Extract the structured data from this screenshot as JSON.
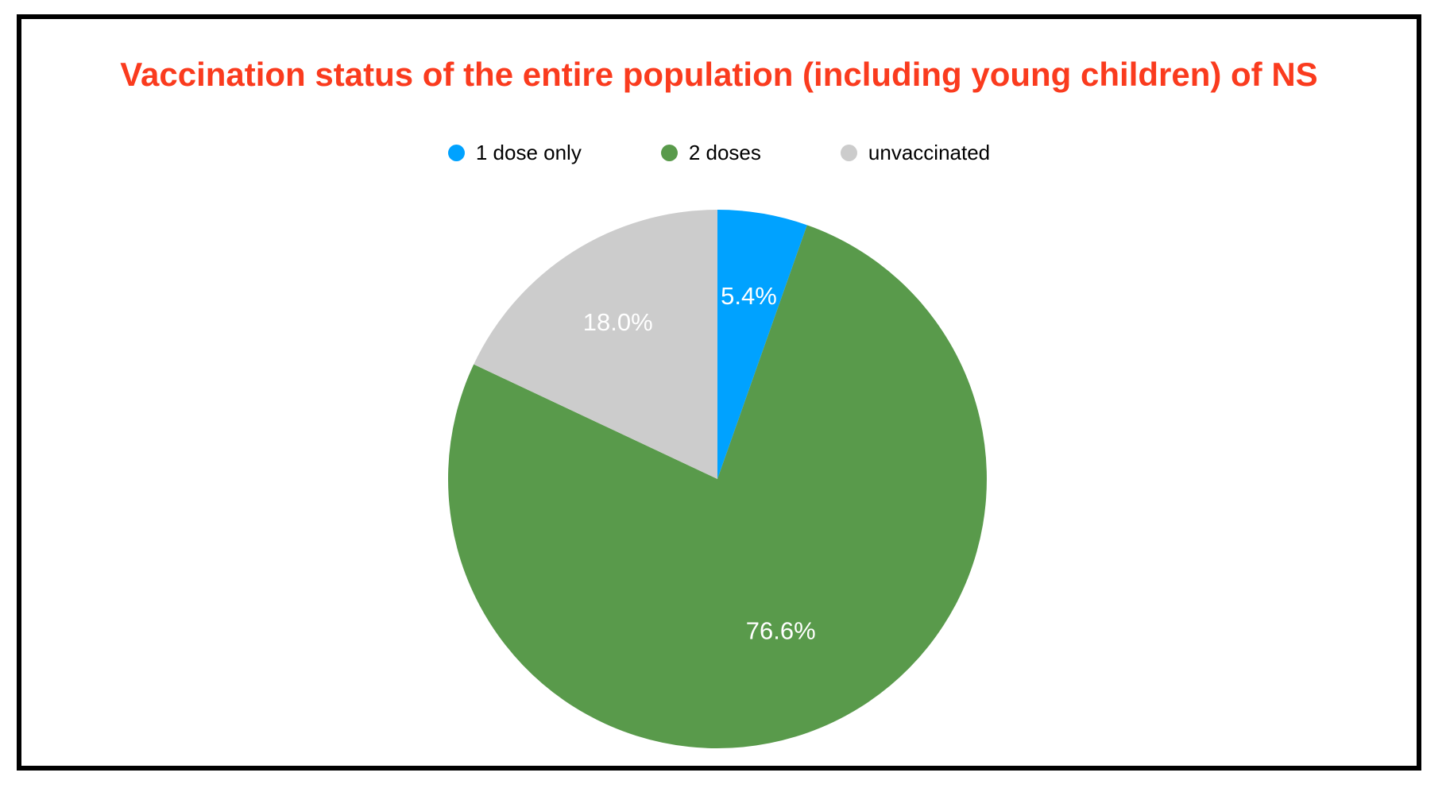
{
  "page": {
    "background": "#ffffff",
    "frame_border_color": "#000000"
  },
  "title": {
    "text": "Vaccination status of the entire population (including young children) of NS",
    "color": "#fa3b1e"
  },
  "legend": {
    "items": [
      {
        "label": "1 dose only",
        "color": "#00a2ff"
      },
      {
        "label": "2 doses",
        "color": "#599a4b"
      },
      {
        "label": "unvaccinated",
        "color": "#cccccc"
      }
    ]
  },
  "chart_data": {
    "type": "pie",
    "title": "Vaccination status of the entire population (including young children) of NS",
    "categories": [
      "1 dose only",
      "2 doses",
      "unvaccinated"
    ],
    "values": [
      5.4,
      76.6,
      18.0
    ],
    "slice_labels": [
      "5.4%",
      "76.6%",
      "18.0%"
    ],
    "colors": [
      "#00a2ff",
      "#599a4b",
      "#cccccc"
    ],
    "start_angle_deg": 0,
    "direction": "clockwise",
    "slice_label_color": "#ffffff",
    "slice_label_radius_frac": [
      0.69,
      0.61,
      0.69
    ],
    "legend_position": "top"
  }
}
